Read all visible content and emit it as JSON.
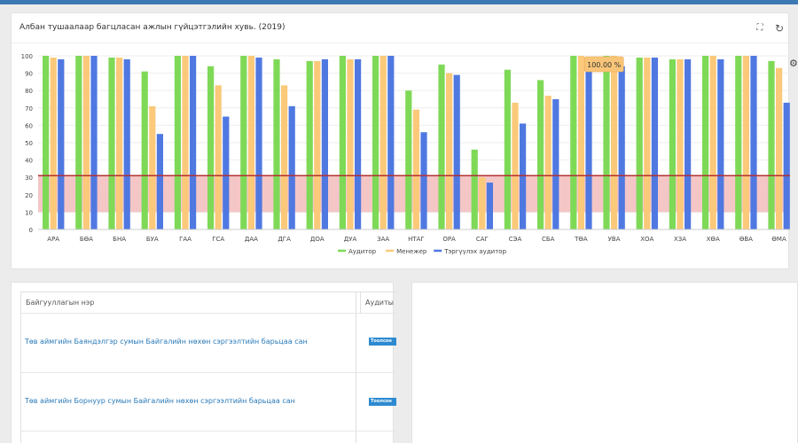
{
  "chart_panel": {
    "title": "Албан тушаалаар багцласан ажлын гүйцэтгэлийн хувь. (2019)",
    "tools": {
      "expand_icon": "expand-icon",
      "refresh_icon": "refresh-icon",
      "side_icon": "gear-icon"
    }
  },
  "chart_data": {
    "type": "bar",
    "title": "Албан тушаалаар багцласан ажлын гүйцэтгэлийн хувь. (2019)",
    "categories": [
      "АРА",
      "БӨА",
      "БНА",
      "БУА",
      "ГАА",
      "ГСА",
      "ДАА",
      "ДГА",
      "ДОА",
      "ДУА",
      "ЗАА",
      "НТАГ",
      "ОРА",
      "САГ",
      "СЭА",
      "СБА",
      "ТӨА",
      "УВА",
      "ХОА",
      "ХЗА",
      "ХӨА",
      "ӨВА",
      "ӨМА"
    ],
    "series": [
      {
        "name": "Аудитор",
        "color": "#7ed957",
        "values": [
          100,
          100,
          99,
          91,
          100,
          94,
          100,
          98,
          97,
          100,
          100,
          80,
          95,
          46,
          92,
          86,
          100,
          100,
          99,
          98,
          100,
          100,
          97
        ]
      },
      {
        "name": "Менежер",
        "color": "#fbc97a",
        "values": [
          99,
          100,
          99,
          71,
          100,
          83,
          100,
          83,
          97,
          98,
          100,
          69,
          90,
          30,
          73,
          77,
          100,
          100,
          99,
          98,
          100,
          100,
          93
        ]
      },
      {
        "name": "Тэргүүлэх аудитор",
        "color": "#4f78e1",
        "values": [
          98,
          100,
          98,
          55,
          100,
          65,
          99,
          71,
          98,
          98,
          100,
          56,
          89,
          27,
          61,
          75,
          92,
          94,
          99,
          98,
          98,
          100,
          73
        ]
      }
    ],
    "ylim": [
      0,
      100
    ],
    "yticks": [
      0,
      10,
      20,
      30,
      40,
      50,
      60,
      70,
      80,
      90,
      100
    ],
    "threshold_line": 31,
    "threshold_band": [
      10,
      31
    ],
    "band_color": "#f2bcbc",
    "line_color": "#b33030",
    "tooltip": "100.00 %",
    "grid": true,
    "legend": "bottom"
  },
  "table": {
    "headers": {
      "name": "Байгууллагын нэр",
      "auditor": "Аудиты"
    },
    "rows": [
      {
        "name": "Төв аймгийн Баяндэлгэр сумын Байгалийн нөхөн сэргээлтийн барьцаа сан",
        "badge": "Тоолсон"
      },
      {
        "name": "Төв аймгийн Борнуур сумын Байгалийн нөхөн сэргээлтийн барьцаа сан",
        "badge": "Тоолсон"
      }
    ]
  }
}
